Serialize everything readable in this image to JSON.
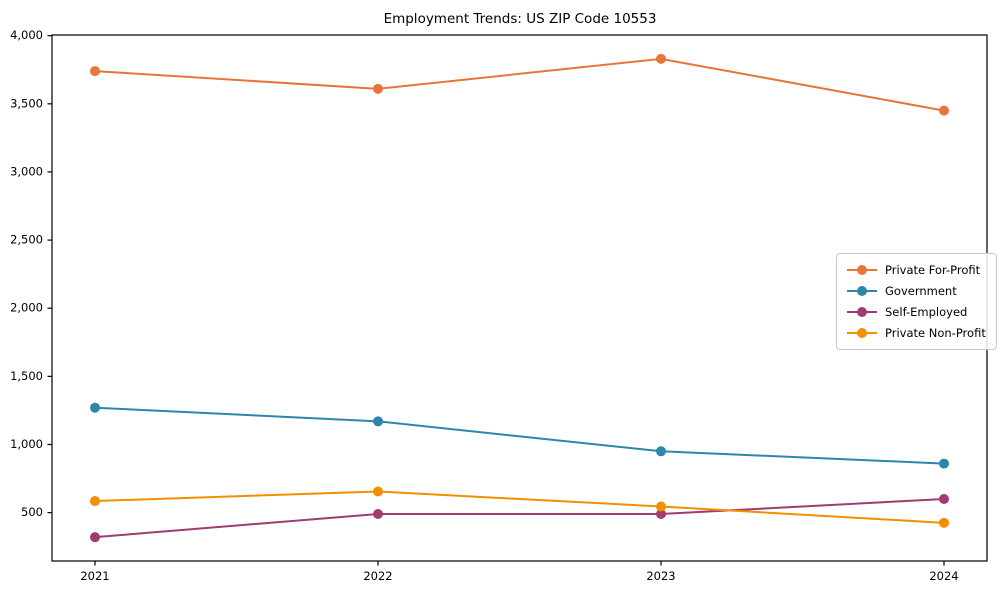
{
  "chart_data": {
    "type": "line",
    "title": "Employment Trends: US ZIP Code 10553",
    "xlabel": "",
    "ylabel": "",
    "categories": [
      "2021",
      "2022",
      "2023",
      "2024"
    ],
    "series": [
      {
        "name": "Private For-Profit",
        "color": "#E8743B",
        "values": [
          3740,
          3610,
          3830,
          3450
        ]
      },
      {
        "name": "Government",
        "color": "#2E86AB",
        "values": [
          1270,
          1170,
          950,
          860
        ]
      },
      {
        "name": "Self-Employed",
        "color": "#A23B72",
        "values": [
          320,
          490,
          490,
          600
        ]
      },
      {
        "name": "Private Non-Profit",
        "color": "#F18F01",
        "values": [
          585,
          655,
          545,
          425
        ]
      }
    ],
    "yticks": [
      500,
      1000,
      1500,
      2000,
      2500,
      3000,
      3500,
      4000
    ],
    "ytick_labels": [
      "500",
      "1,000",
      "1,500",
      "2,000",
      "2,500",
      "3,000",
      "3,500",
      "4,000"
    ],
    "ylim": [
      145,
      4005
    ],
    "grid": false,
    "legend_position": "center right",
    "marker": "circle",
    "line_width": 2,
    "axis_color": "#000000",
    "background_color": "#ffffff"
  }
}
